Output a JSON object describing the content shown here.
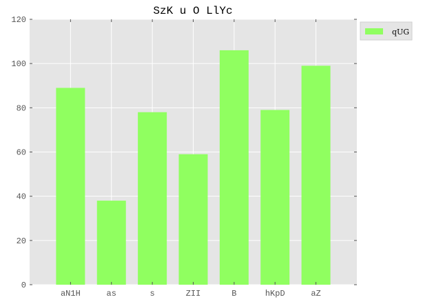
{
  "chart_data": {
    "type": "bar",
    "title": "SzK  u O LlYc",
    "categories": [
      "aN1H",
      "as",
      "s",
      "ZII",
      "B",
      "hKpD",
      "aZ"
    ],
    "series": [
      {
        "name": "qUG",
        "values": [
          89,
          38,
          78,
          59,
          106,
          79,
          99
        ]
      }
    ],
    "ylim": [
      0,
      120
    ],
    "yticks": [
      0,
      20,
      40,
      60,
      80,
      100,
      120
    ],
    "grid": true,
    "legend_position": "top-right",
    "colors": {
      "bar": "#90ff60",
      "plot_background": "#e5e5e5",
      "grid": "#ffffff",
      "legend_background": "#e5e5e5"
    }
  }
}
